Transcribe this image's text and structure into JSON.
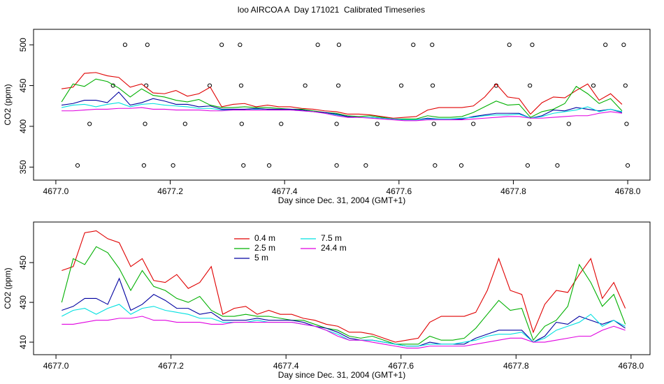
{
  "chart_data": [
    {
      "type": "line",
      "title": "loo AIRCOA A  Day 171021  Calibrated Timeseries",
      "xlabel": "Day since Dec. 31, 2004 (GMT+1)",
      "ylabel": "CO2 (ppm)",
      "xlim": [
        4676.961,
        4678.039
      ],
      "ylim": [
        334,
        519
      ],
      "xticks": [
        {
          "value": 4677,
          "label": "4677.0"
        },
        {
          "value": 4677.2,
          "label": "4677.2"
        },
        {
          "value": 4677.4,
          "label": "4677.4"
        },
        {
          "value": 4677.6,
          "label": "4677.6"
        },
        {
          "value": 4677.8,
          "label": "4677.8"
        },
        {
          "value": 4678,
          "label": "4678.0"
        }
      ],
      "yticks": [
        350,
        400,
        450,
        500
      ],
      "x": [
        4677.01,
        4677.03,
        4677.05,
        4677.07,
        4677.09,
        4677.11,
        4677.13,
        4677.15,
        4677.17,
        4677.19,
        4677.21,
        4677.23,
        4677.25,
        4677.27,
        4677.29,
        4677.31,
        4677.33,
        4677.35,
        4677.37,
        4677.39,
        4677.41,
        4677.43,
        4677.45,
        4677.47,
        4677.49,
        4677.51,
        4677.53,
        4677.55,
        4677.57,
        4677.59,
        4677.61,
        4677.63,
        4677.65,
        4677.67,
        4677.69,
        4677.71,
        4677.73,
        4677.75,
        4677.77,
        4677.79,
        4677.81,
        4677.83,
        4677.85,
        4677.87,
        4677.89,
        4677.91,
        4677.93,
        4677.95,
        4677.97,
        4677.99
      ],
      "series": [
        {
          "name": "0.4 m",
          "color": "#e00000",
          "values": [
            446,
            448,
            465,
            466,
            462,
            460,
            448,
            452,
            441,
            440,
            444,
            437,
            440,
            448,
            424,
            427,
            428,
            424,
            426,
            424,
            424,
            422,
            421,
            419,
            418,
            415,
            415,
            414,
            412,
            410,
            411,
            412,
            420,
            423,
            423,
            423,
            425,
            436,
            452,
            436,
            434,
            415,
            429,
            436,
            435,
            444,
            452,
            432,
            440,
            427
          ]
        },
        {
          "name": "2.5 m",
          "color": "#00b000",
          "values": [
            430,
            452,
            449,
            458,
            455,
            447,
            436,
            446,
            438,
            436,
            432,
            430,
            433,
            426,
            423,
            423,
            424,
            423,
            423,
            422,
            421,
            421,
            419,
            417,
            416,
            413,
            412,
            413,
            411,
            409,
            409,
            409,
            413,
            411,
            411,
            412,
            417,
            424,
            431,
            426,
            427,
            411,
            418,
            421,
            428,
            449,
            440,
            428,
            434,
            419
          ]
        },
        {
          "name": "5 m",
          "color": "#0000a0",
          "values": [
            426,
            428,
            432,
            432,
            429,
            442,
            426,
            429,
            434,
            431,
            427,
            427,
            424,
            425,
            421,
            421,
            421,
            422,
            421,
            421,
            421,
            420,
            418,
            417,
            415,
            412,
            411,
            411,
            410,
            409,
            408,
            408,
            410,
            409,
            409,
            409,
            412,
            414,
            416,
            416,
            416,
            410,
            413,
            420,
            419,
            423,
            421,
            419,
            421,
            417
          ]
        },
        {
          "name": "7.5 m",
          "color": "#00e0e0",
          "values": [
            423,
            426,
            427,
            424,
            427,
            429,
            424,
            427,
            428,
            426,
            425,
            424,
            422,
            422,
            420,
            420,
            420,
            421,
            420,
            420,
            420,
            419,
            418,
            416,
            414,
            411,
            411,
            411,
            410,
            409,
            408,
            408,
            409,
            409,
            409,
            410,
            411,
            413,
            414,
            414,
            415,
            410,
            412,
            416,
            418,
            420,
            424,
            418,
            421,
            418
          ]
        },
        {
          "name": "24.4 m",
          "color": "#e000e0",
          "values": [
            419,
            419,
            420,
            421,
            421,
            422,
            422,
            423,
            421,
            421,
            420,
            420,
            420,
            419,
            419,
            420,
            420,
            420,
            420,
            420,
            420,
            419,
            418,
            416,
            413,
            411,
            411,
            410,
            409,
            408,
            407,
            407,
            408,
            408,
            408,
            408,
            409,
            410,
            411,
            412,
            412,
            410,
            410,
            411,
            412,
            413,
            413,
            416,
            418,
            416
          ]
        }
      ],
      "markers": {
        "x": [
          4677.121,
          4677.16,
          4677.29,
          4677.322,
          4677.458,
          4677.495,
          4677.625,
          4677.658,
          4677.793,
          4677.833,
          4677.961,
          4677.993,
          4677.1,
          4677.158,
          4677.269,
          4677.324,
          4677.436,
          4677.494,
          4677.604,
          4677.659,
          4677.77,
          4677.829,
          4677.94,
          4677.996,
          4677.059,
          4677.156,
          4677.226,
          4677.325,
          4677.394,
          4677.491,
          4677.562,
          4677.661,
          4677.73,
          4677.828,
          4677.897,
          4677.998,
          4677.038,
          4677.154,
          4677.205,
          4677.328,
          4677.373,
          4677.491,
          4677.542,
          4677.663,
          4677.709,
          4677.825,
          4677.877,
          4678.0
        ],
        "y": [
          500,
          500,
          500,
          500,
          500,
          500,
          500,
          500,
          500,
          500,
          500,
          500,
          450,
          450,
          450,
          450,
          450,
          450,
          450,
          450,
          450,
          450,
          450,
          450,
          403,
          403,
          403,
          403,
          403,
          403,
          403,
          403,
          403,
          403,
          403,
          403,
          352,
          352,
          352,
          352,
          352,
          352,
          352,
          352,
          352,
          352,
          352,
          352
        ]
      }
    },
    {
      "type": "line",
      "xlabel": "Day since Dec. 31, 2004 (GMT+1)",
      "ylabel": "CO2 (ppm)",
      "xlim": [
        4676.961,
        4678.033
      ],
      "ylim": [
        403.7,
        470.4
      ],
      "xticks": [
        {
          "value": 4677,
          "label": "4677.0"
        },
        {
          "value": 4677.2,
          "label": "4677.2"
        },
        {
          "value": 4677.4,
          "label": "4677.4"
        },
        {
          "value": 4677.6,
          "label": "4677.6"
        },
        {
          "value": 4677.8,
          "label": "4677.8"
        },
        {
          "value": 4678,
          "label": "4678.0"
        }
      ],
      "yticks": [
        410,
        430,
        450
      ],
      "legend": "top",
      "x": [
        4677.01,
        4677.03,
        4677.05,
        4677.07,
        4677.09,
        4677.11,
        4677.13,
        4677.15,
        4677.17,
        4677.19,
        4677.21,
        4677.23,
        4677.25,
        4677.27,
        4677.29,
        4677.31,
        4677.33,
        4677.35,
        4677.37,
        4677.39,
        4677.41,
        4677.43,
        4677.45,
        4677.47,
        4677.49,
        4677.51,
        4677.53,
        4677.55,
        4677.57,
        4677.59,
        4677.61,
        4677.63,
        4677.65,
        4677.67,
        4677.69,
        4677.71,
        4677.73,
        4677.75,
        4677.77,
        4677.79,
        4677.81,
        4677.83,
        4677.85,
        4677.87,
        4677.89,
        4677.91,
        4677.93,
        4677.95,
        4677.97,
        4677.99
      ],
      "series": [
        {
          "name": "0.4 m",
          "color": "#e00000",
          "values": [
            446,
            448,
            465,
            466,
            462,
            460,
            448,
            452,
            441,
            440,
            444,
            437,
            440,
            448,
            424,
            427,
            428,
            424,
            426,
            424,
            424,
            422,
            421,
            419,
            418,
            415,
            415,
            414,
            412,
            410,
            411,
            412,
            420,
            423,
            423,
            423,
            425,
            436,
            452,
            436,
            434,
            415,
            429,
            436,
            435,
            444,
            452,
            432,
            440,
            427
          ]
        },
        {
          "name": "2.5 m",
          "color": "#00b000",
          "values": [
            430,
            452,
            449,
            458,
            455,
            447,
            436,
            446,
            438,
            436,
            432,
            430,
            433,
            426,
            423,
            423,
            424,
            423,
            423,
            422,
            421,
            421,
            419,
            417,
            416,
            413,
            412,
            413,
            411,
            409,
            409,
            409,
            413,
            411,
            411,
            412,
            417,
            424,
            431,
            426,
            427,
            411,
            418,
            421,
            428,
            449,
            440,
            428,
            434,
            419
          ]
        },
        {
          "name": "5 m",
          "color": "#0000a0",
          "values": [
            426,
            428,
            432,
            432,
            429,
            442,
            426,
            429,
            434,
            431,
            427,
            427,
            424,
            425,
            421,
            421,
            421,
            422,
            421,
            421,
            421,
            420,
            418,
            417,
            415,
            412,
            411,
            411,
            410,
            409,
            408,
            408,
            410,
            409,
            409,
            409,
            412,
            414,
            416,
            416,
            416,
            410,
            413,
            420,
            419,
            423,
            421,
            419,
            421,
            417
          ]
        },
        {
          "name": "7.5 m",
          "color": "#00e0e0",
          "values": [
            423,
            426,
            427,
            424,
            427,
            429,
            424,
            427,
            428,
            426,
            425,
            424,
            422,
            422,
            420,
            420,
            420,
            421,
            420,
            420,
            420,
            419,
            418,
            416,
            414,
            411,
            411,
            411,
            410,
            409,
            408,
            408,
            409,
            409,
            409,
            410,
            411,
            413,
            414,
            414,
            415,
            410,
            412,
            416,
            418,
            420,
            424,
            418,
            421,
            418
          ]
        },
        {
          "name": "24.4 m",
          "color": "#e000e0",
          "values": [
            419,
            419,
            420,
            421,
            421,
            422,
            422,
            423,
            421,
            421,
            420,
            420,
            420,
            419,
            419,
            420,
            420,
            420,
            420,
            420,
            420,
            419,
            418,
            416,
            413,
            411,
            411,
            410,
            409,
            408,
            407,
            407,
            408,
            408,
            408,
            408,
            409,
            410,
            411,
            412,
            412,
            410,
            410,
            411,
            412,
            413,
            413,
            416,
            418,
            416
          ]
        }
      ]
    }
  ]
}
